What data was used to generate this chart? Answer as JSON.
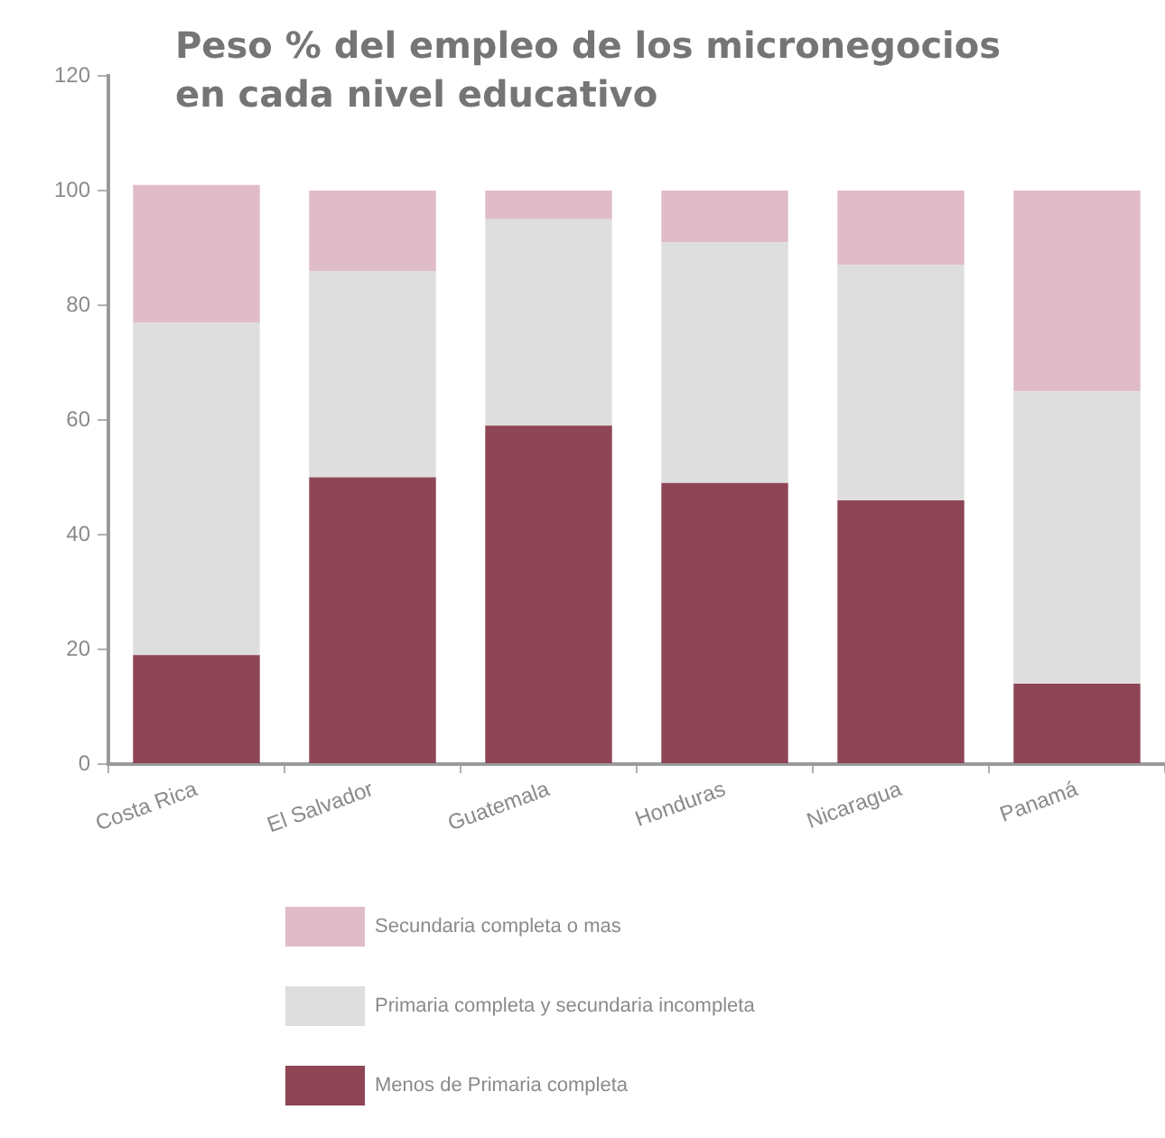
{
  "chart_data": {
    "type": "bar",
    "title": "Peso % del empleo de los micronegocios en cada nivel educativo",
    "categories": [
      "Costa Rica",
      "El Salvador",
      "Guatemala",
      "Honduras",
      "Nicaragua",
      "Panamá"
    ],
    "series": [
      {
        "name": "Menos de Primaria completa",
        "color": "#8e4555",
        "values": [
          19,
          50,
          59,
          49,
          46,
          14
        ]
      },
      {
        "name": "Primaria completa y secundaria incompleta",
        "color": "#dedede",
        "values": [
          58,
          36,
          36,
          42,
          41,
          51
        ]
      },
      {
        "name": "Secundaria completa o mas",
        "color": "#e0bcc8",
        "values": [
          24,
          14,
          5,
          9,
          13,
          35
        ]
      }
    ],
    "stacked": true,
    "ylim": [
      0,
      120
    ],
    "yticks": [
      0,
      20,
      40,
      60,
      80,
      100,
      120
    ],
    "legend": "bottom"
  }
}
